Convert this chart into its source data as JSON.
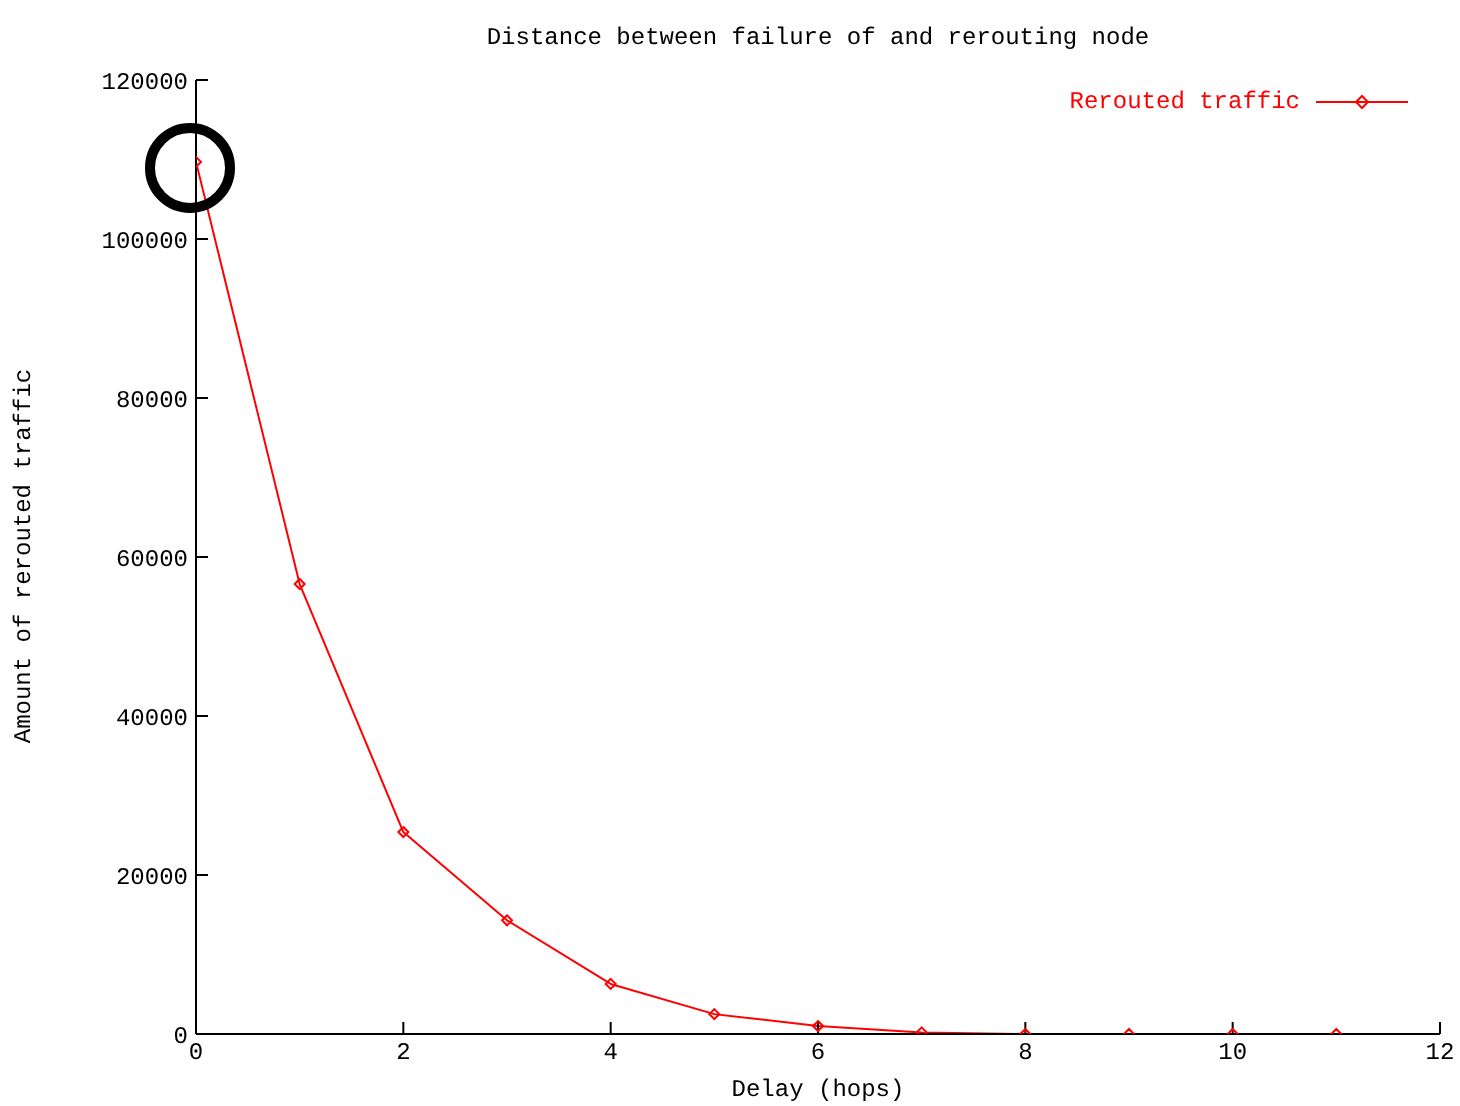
{
  "chart_data": {
    "type": "line",
    "title": "Distance between failure of and rerouting node",
    "xlabel": "Delay (hops)",
    "ylabel": "Amount of rerouted traffic",
    "x": [
      0,
      1,
      2,
      3,
      4,
      5,
      6,
      7,
      8,
      9,
      10,
      11
    ],
    "series": [
      {
        "name": "Rerouted traffic",
        "color": "#ff0000",
        "values": [
          109700,
          56600,
          25400,
          14300,
          6300,
          2500,
          1000,
          200,
          0,
          0,
          0,
          0
        ]
      }
    ],
    "xlim": [
      0,
      12
    ],
    "xticks": [
      0,
      2,
      4,
      6,
      8,
      10,
      12
    ],
    "ylim": [
      0,
      120000
    ],
    "yticks": [
      0,
      20000,
      40000,
      60000,
      80000,
      100000,
      120000
    ],
    "grid": false,
    "legend": "top right",
    "marker": "diamond",
    "line_style": "solid"
  }
}
